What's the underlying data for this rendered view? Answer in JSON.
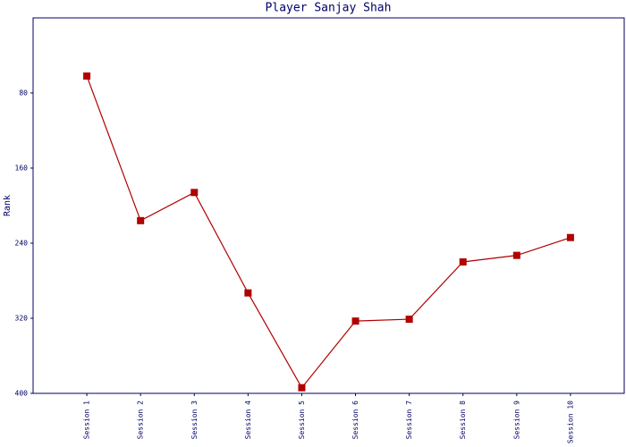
{
  "chart_data": {
    "type": "line",
    "title": "Player Sanjay Shah",
    "y_label": "Rank",
    "categories": [
      "Session 1",
      "Session 2",
      "Session 3",
      "Session 4",
      "Session 5",
      "Session 6",
      "Session 7",
      "Session 8",
      "Session 9",
      "Session 10"
    ],
    "series": [
      {
        "name": "Rank",
        "color": "#b00000",
        "values": [
          62,
          216,
          186,
          293,
          394,
          323,
          321,
          260,
          253,
          234
        ]
      }
    ],
    "ylim": [
      400,
      0
    ],
    "yticks": [
      80,
      160,
      240,
      320,
      400
    ]
  }
}
